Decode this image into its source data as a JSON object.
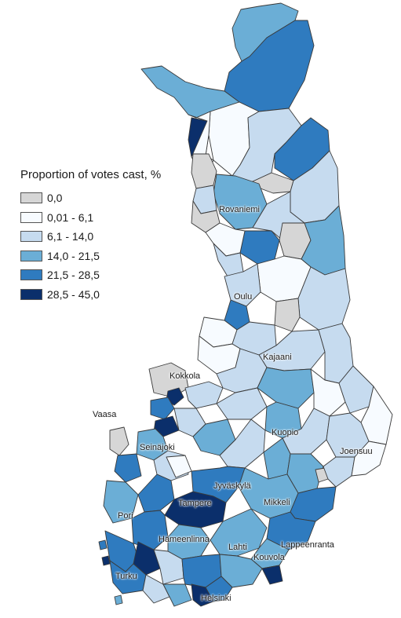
{
  "legend": {
    "title": "Proportion of votes cast, %",
    "items": [
      {
        "label": "0,0",
        "color": "#d6d6d6"
      },
      {
        "label": "0,01 - 6,1",
        "color": "#f7fbff"
      },
      {
        "label": "6,1 - 14,0",
        "color": "#c6dbef"
      },
      {
        "label": "14,0 - 21,5",
        "color": "#6baed6"
      },
      {
        "label": "21,5 - 28,5",
        "color": "#2f7bbf"
      },
      {
        "label": "28,5 - 45,0",
        "color": "#0b2f6b"
      }
    ]
  },
  "cities": {
    "rovaniemi": "Rovaniemi",
    "oulu": "Oulu",
    "kajaani": "Kajaani",
    "kokkola": "Kokkola",
    "vaasa": "Vaasa",
    "kuopio": "Kuopio",
    "joensuu": "Joensuu",
    "seinajoki": "Seinäjoki",
    "jyvaskyla": "Jyväskylä",
    "mikkeli": "Mikkeli",
    "tampere": "Tampere",
    "pori": "Pori",
    "hameenlinna": "Hämeenlinna",
    "lahti": "Lahti",
    "lappeenranta": "Lappeenranta",
    "kouvola": "Kouvola",
    "turku": "Turku",
    "helsinki": "Helsinki"
  }
}
